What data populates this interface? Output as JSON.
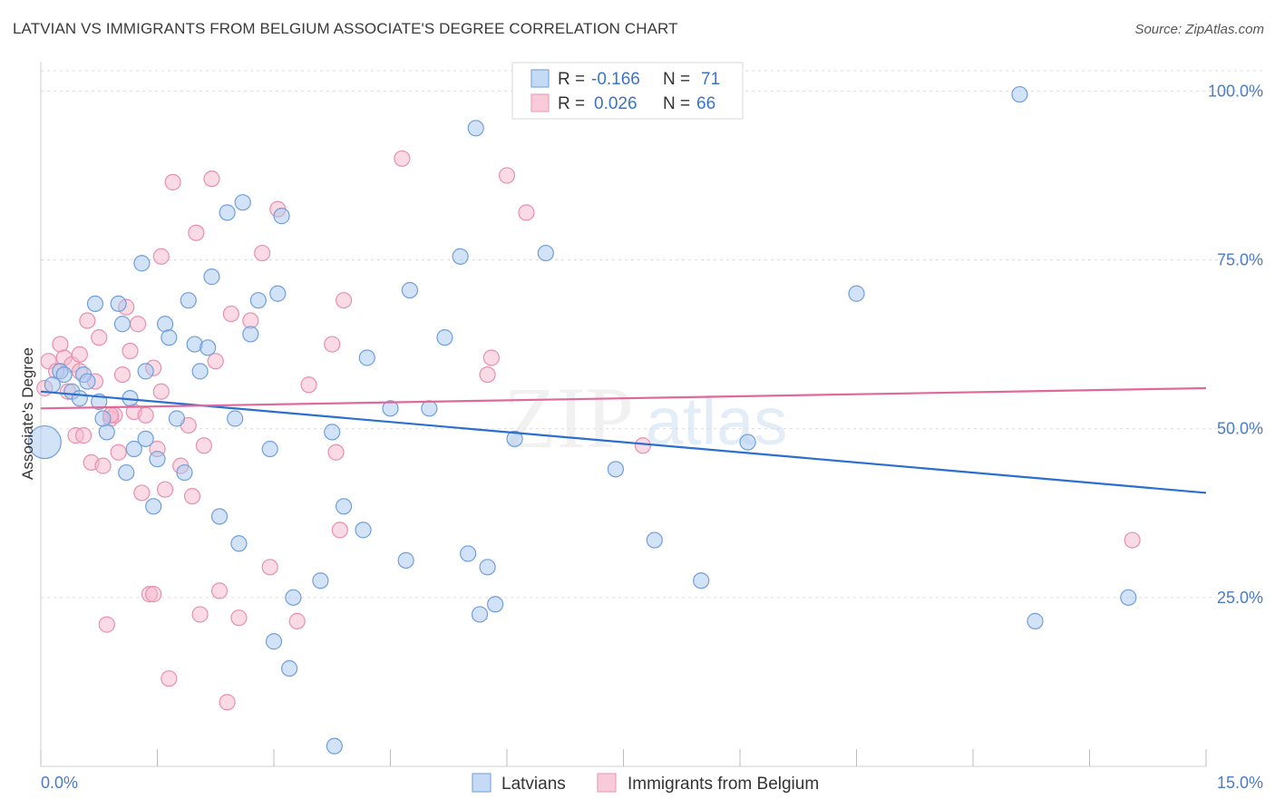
{
  "title": "LATVIAN VS IMMIGRANTS FROM BELGIUM ASSOCIATE'S DEGREE CORRELATION CHART",
  "source": "Source: ZipAtlas.com",
  "watermark": {
    "zip": "ZIP",
    "atlas": "atlas"
  },
  "colors": {
    "blue_fill": "#a8c8f0",
    "blue_stroke": "#6f9fdc",
    "blue_line": "#2a6fd0",
    "pink_fill": "#f5b8cb",
    "pink_stroke": "#e890ac",
    "pink_line": "#e0689a",
    "tick_text": "#4a7cc8",
    "grid": "#dcdcdc"
  },
  "legend": {
    "r_label": "R =",
    "n_label": "N =",
    "rows": [
      {
        "series": "Latvians",
        "r": "-0.166",
        "n": "71"
      },
      {
        "series": "Immigrants from Belgium",
        "r": "0.026",
        "n": "66"
      }
    ]
  },
  "chart_data": {
    "type": "scatter",
    "title": "LATVIAN VS IMMIGRANTS FROM BELGIUM ASSOCIATE'S DEGREE CORRELATION CHART",
    "xlabel": "",
    "ylabel": "Associate's Degree",
    "xlim": [
      0,
      15
    ],
    "ylim": [
      0,
      103
    ],
    "x_tick_labels": [
      "0.0%",
      "15.0%"
    ],
    "y_ticks": [
      25,
      50,
      75,
      100
    ],
    "y_tick_labels": [
      "25.0%",
      "50.0%",
      "75.0%",
      "100.0%"
    ],
    "grid": true,
    "legend_position": "top-center",
    "series": [
      {
        "name": "Latvians",
        "color": "#a8c8f0",
        "trend": {
          "x": [
            0,
            15
          ],
          "y": [
            55.5,
            40.5
          ]
        },
        "points": [
          {
            "x": 0.05,
            "y": 48.0,
            "size": "large"
          },
          {
            "x": 0.15,
            "y": 56.5
          },
          {
            "x": 0.25,
            "y": 58.5
          },
          {
            "x": 0.3,
            "y": 58.0
          },
          {
            "x": 0.4,
            "y": 55.5
          },
          {
            "x": 0.5,
            "y": 54.5
          },
          {
            "x": 0.55,
            "y": 58.0
          },
          {
            "x": 0.6,
            "y": 57.0
          },
          {
            "x": 0.7,
            "y": 68.5
          },
          {
            "x": 0.75,
            "y": 54.0
          },
          {
            "x": 0.85,
            "y": 49.5
          },
          {
            "x": 0.8,
            "y": 51.5
          },
          {
            "x": 1.0,
            "y": 68.5
          },
          {
            "x": 1.05,
            "y": 65.5
          },
          {
            "x": 1.15,
            "y": 54.5
          },
          {
            "x": 1.2,
            "y": 47.0
          },
          {
            "x": 1.1,
            "y": 43.5
          },
          {
            "x": 1.3,
            "y": 74.5
          },
          {
            "x": 1.35,
            "y": 58.5
          },
          {
            "x": 1.45,
            "y": 38.5
          },
          {
            "x": 1.5,
            "y": 45.5
          },
          {
            "x": 1.6,
            "y": 65.5
          },
          {
            "x": 1.65,
            "y": 63.5
          },
          {
            "x": 1.75,
            "y": 51.5
          },
          {
            "x": 1.85,
            "y": 43.5
          },
          {
            "x": 1.9,
            "y": 69.0
          },
          {
            "x": 1.98,
            "y": 62.5
          },
          {
            "x": 2.05,
            "y": 58.5
          },
          {
            "x": 2.15,
            "y": 62.0
          },
          {
            "x": 2.2,
            "y": 72.5
          },
          {
            "x": 2.3,
            "y": 37.0
          },
          {
            "x": 2.4,
            "y": 82.0
          },
          {
            "x": 2.5,
            "y": 51.5
          },
          {
            "x": 2.55,
            "y": 33.0
          },
          {
            "x": 2.6,
            "y": 83.5
          },
          {
            "x": 2.7,
            "y": 64.0
          },
          {
            "x": 2.8,
            "y": 69.0
          },
          {
            "x": 2.95,
            "y": 47.0
          },
          {
            "x": 3.0,
            "y": 18.5
          },
          {
            "x": 3.05,
            "y": 70.0
          },
          {
            "x": 3.1,
            "y": 81.5
          },
          {
            "x": 3.2,
            "y": 14.5
          },
          {
            "x": 3.25,
            "y": 25.0
          },
          {
            "x": 3.6,
            "y": 27.5
          },
          {
            "x": 3.75,
            "y": 49.5
          },
          {
            "x": 3.78,
            "y": 3.0
          },
          {
            "x": 3.9,
            "y": 38.5
          },
          {
            "x": 4.15,
            "y": 35.0
          },
          {
            "x": 4.2,
            "y": 60.5
          },
          {
            "x": 4.5,
            "y": 53.0
          },
          {
            "x": 4.7,
            "y": 30.5
          },
          {
            "x": 4.75,
            "y": 70.5
          },
          {
            "x": 5.0,
            "y": 53.0
          },
          {
            "x": 5.2,
            "y": 63.5
          },
          {
            "x": 5.4,
            "y": 75.5
          },
          {
            "x": 5.5,
            "y": 31.5
          },
          {
            "x": 5.6,
            "y": 94.5
          },
          {
            "x": 5.65,
            "y": 22.5
          },
          {
            "x": 5.75,
            "y": 29.5
          },
          {
            "x": 5.85,
            "y": 24.0
          },
          {
            "x": 6.1,
            "y": 48.5
          },
          {
            "x": 6.5,
            "y": 76.0
          },
          {
            "x": 7.4,
            "y": 44.0
          },
          {
            "x": 7.9,
            "y": 33.5
          },
          {
            "x": 8.5,
            "y": 27.5
          },
          {
            "x": 9.1,
            "y": 48.0
          },
          {
            "x": 10.5,
            "y": 70.0
          },
          {
            "x": 12.6,
            "y": 99.5
          },
          {
            "x": 12.8,
            "y": 21.5
          },
          {
            "x": 14.0,
            "y": 25.0
          },
          {
            "x": 1.35,
            "y": 48.5
          }
        ]
      },
      {
        "name": "Immigrants from Belgium",
        "color": "#f5b8cb",
        "trend": {
          "x": [
            0,
            15
          ],
          "y": [
            53.0,
            56.0
          ]
        },
        "points": [
          {
            "x": 0.05,
            "y": 56.0
          },
          {
            "x": 0.1,
            "y": 60.0
          },
          {
            "x": 0.2,
            "y": 58.5
          },
          {
            "x": 0.25,
            "y": 62.5
          },
          {
            "x": 0.3,
            "y": 60.5
          },
          {
            "x": 0.35,
            "y": 55.5
          },
          {
            "x": 0.4,
            "y": 59.5
          },
          {
            "x": 0.45,
            "y": 49.0
          },
          {
            "x": 0.5,
            "y": 58.5
          },
          {
            "x": 0.55,
            "y": 49.0
          },
          {
            "x": 0.6,
            "y": 66.0
          },
          {
            "x": 0.65,
            "y": 45.0
          },
          {
            "x": 0.7,
            "y": 57.0
          },
          {
            "x": 0.75,
            "y": 63.5
          },
          {
            "x": 0.8,
            "y": 44.5
          },
          {
            "x": 0.85,
            "y": 21.0
          },
          {
            "x": 0.9,
            "y": 51.5
          },
          {
            "x": 0.95,
            "y": 52.0
          },
          {
            "x": 1.0,
            "y": 46.5
          },
          {
            "x": 1.05,
            "y": 58.0
          },
          {
            "x": 1.1,
            "y": 68.0
          },
          {
            "x": 1.15,
            "y": 61.5
          },
          {
            "x": 1.2,
            "y": 52.5
          },
          {
            "x": 1.25,
            "y": 65.5
          },
          {
            "x": 1.3,
            "y": 40.5
          },
          {
            "x": 1.35,
            "y": 52.0
          },
          {
            "x": 1.4,
            "y": 25.5
          },
          {
            "x": 1.45,
            "y": 59.0
          },
          {
            "x": 1.5,
            "y": 47.0
          },
          {
            "x": 1.55,
            "y": 75.5
          },
          {
            "x": 1.6,
            "y": 41.0
          },
          {
            "x": 1.65,
            "y": 13.0
          },
          {
            "x": 1.7,
            "y": 86.5
          },
          {
            "x": 1.8,
            "y": 44.5
          },
          {
            "x": 1.9,
            "y": 50.5
          },
          {
            "x": 1.95,
            "y": 40.0
          },
          {
            "x": 2.0,
            "y": 79.0
          },
          {
            "x": 2.05,
            "y": 22.5
          },
          {
            "x": 2.2,
            "y": 87.0
          },
          {
            "x": 2.25,
            "y": 60.0
          },
          {
            "x": 2.3,
            "y": 26.0
          },
          {
            "x": 2.4,
            "y": 9.5
          },
          {
            "x": 2.45,
            "y": 67.0
          },
          {
            "x": 2.55,
            "y": 22.0
          },
          {
            "x": 2.7,
            "y": 66.0
          },
          {
            "x": 2.85,
            "y": 76.0
          },
          {
            "x": 2.95,
            "y": 29.5
          },
          {
            "x": 3.05,
            "y": 82.5
          },
          {
            "x": 3.3,
            "y": 21.5
          },
          {
            "x": 3.45,
            "y": 56.5
          },
          {
            "x": 3.75,
            "y": 62.5
          },
          {
            "x": 3.8,
            "y": 46.5
          },
          {
            "x": 3.85,
            "y": 35.0
          },
          {
            "x": 3.9,
            "y": 69.0
          },
          {
            "x": 4.65,
            "y": 90.0
          },
          {
            "x": 5.75,
            "y": 58.0
          },
          {
            "x": 5.8,
            "y": 60.5
          },
          {
            "x": 6.0,
            "y": 87.5
          },
          {
            "x": 6.25,
            "y": 82.0
          },
          {
            "x": 7.75,
            "y": 47.5
          },
          {
            "x": 14.05,
            "y": 33.5
          },
          {
            "x": 1.45,
            "y": 25.5
          },
          {
            "x": 0.5,
            "y": 61.0
          },
          {
            "x": 0.9,
            "y": 52.0
          },
          {
            "x": 1.55,
            "y": 55.5
          },
          {
            "x": 2.1,
            "y": 47.5
          }
        ]
      }
    ]
  },
  "legend_bottom": [
    "Latvians",
    "Immigrants from Belgium"
  ]
}
